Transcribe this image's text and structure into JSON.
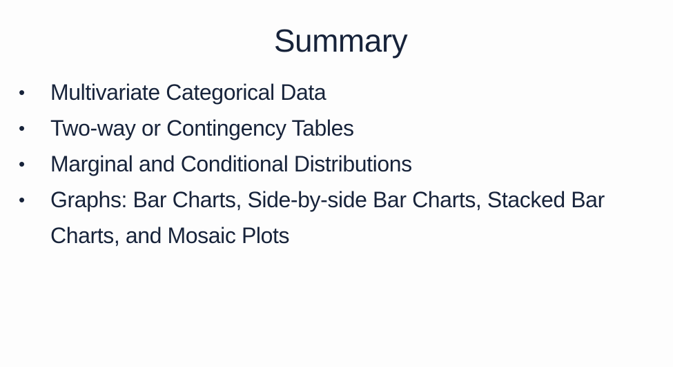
{
  "slide": {
    "title": "Summary",
    "bullets": [
      "Multivariate Categorical Data",
      "Two-way or Contingency Tables",
      "Marginal and Conditional Distributions",
      "Graphs: Bar Charts, Side-by-side Bar Charts, Stacked Bar Charts, and Mosaic Plots"
    ],
    "bullet_glyph": "•",
    "colors": {
      "text": "#17233a",
      "background": "#fdfdfd"
    }
  }
}
